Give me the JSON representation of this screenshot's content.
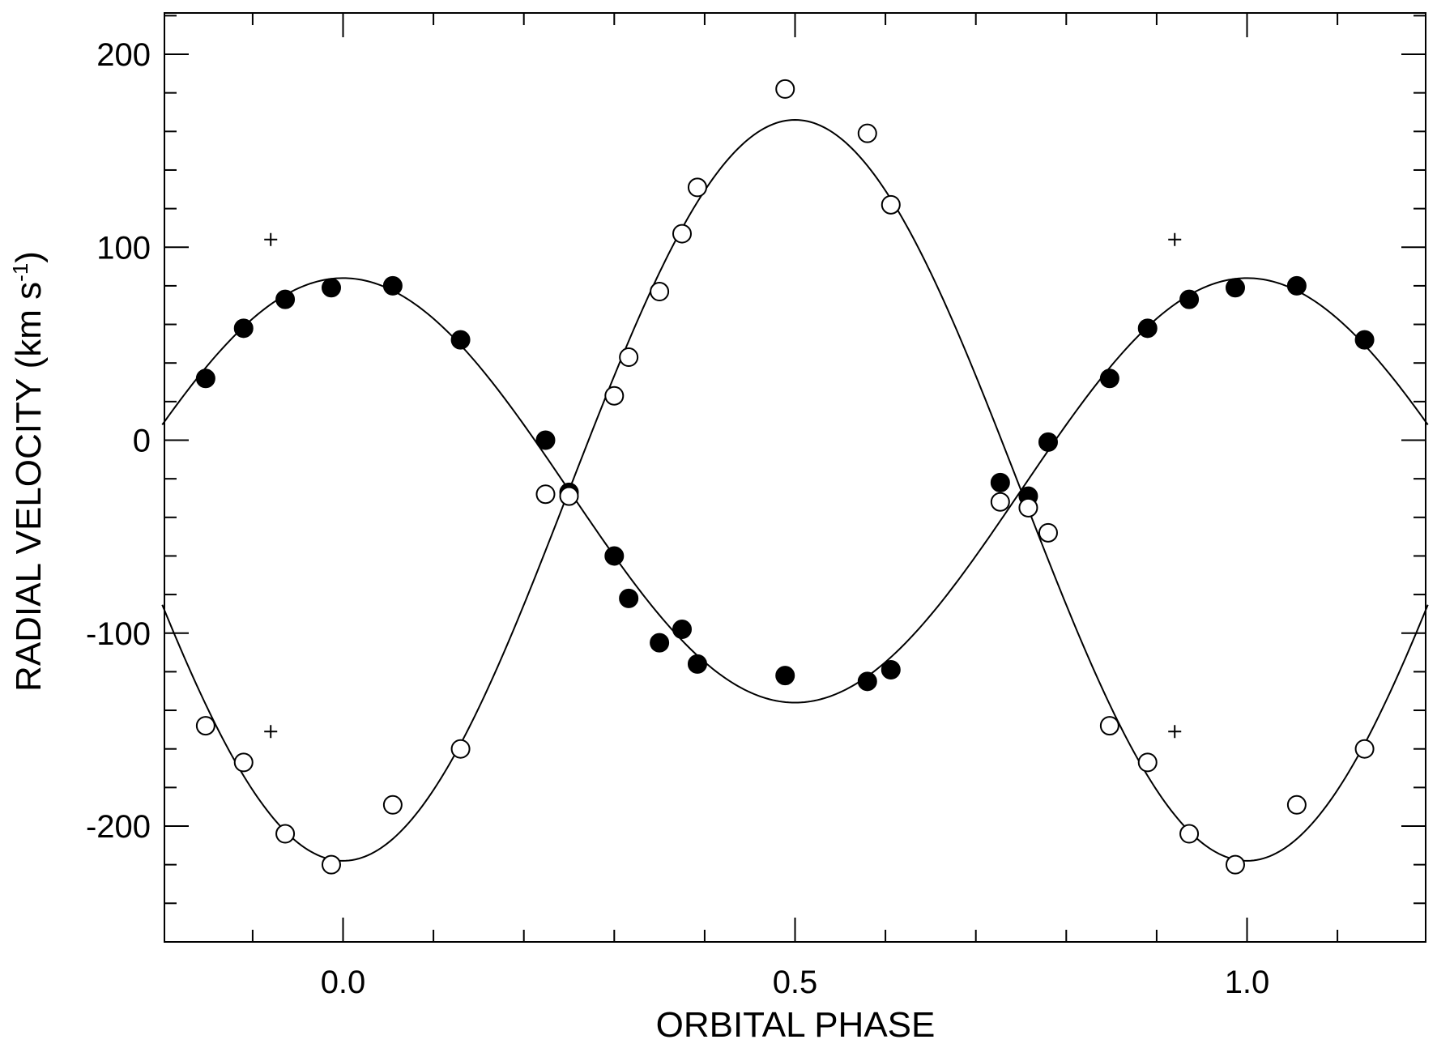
{
  "chart_data": {
    "type": "scatter",
    "title": "",
    "xlabel": "ORBITAL PHASE",
    "ylabel": "RADIAL VELOCITY (km s",
    "ylabel_sup": "-1",
    "ylabel_end": ")",
    "xlim": [
      -0.2,
      1.2
    ],
    "ylim": [
      -260,
      220
    ],
    "x_ticks": [
      {
        "value": 0.0,
        "label": "0.0"
      },
      {
        "value": 0.5,
        "label": "0.5"
      },
      {
        "value": 1.0,
        "label": "1.0"
      }
    ],
    "x_minor_step": 0.1,
    "y_ticks": [
      {
        "value": 200,
        "label": "200"
      },
      {
        "value": 100,
        "label": "100"
      },
      {
        "value": 0,
        "label": "0"
      },
      {
        "value": -100,
        "label": "-100"
      },
      {
        "value": -200,
        "label": "-200"
      }
    ],
    "y_minor_step": 20,
    "grid": false,
    "colors": {
      "ink": "#000000",
      "background": "#ffffff"
    },
    "series": [
      {
        "marker": "filled-circle",
        "x": [
          -0.152,
          -0.11,
          -0.064,
          -0.013,
          0.055,
          0.13,
          0.224,
          0.25,
          0.3,
          0.316,
          0.35,
          0.375,
          0.392,
          0.489,
          0.58,
          0.606,
          0.727,
          0.758,
          0.78,
          0.848,
          0.89,
          0.936,
          0.987,
          1.055,
          1.13
        ],
        "y": [
          32,
          58,
          73,
          79,
          80,
          52,
          0,
          -27,
          -60,
          -82,
          -105,
          -98,
          -116,
          -122,
          -125,
          -119,
          -22,
          -29,
          -1,
          32,
          58,
          73,
          79,
          80,
          52
        ]
      },
      {
        "marker": "open-circle",
        "x": [
          -0.152,
          -0.11,
          -0.064,
          -0.013,
          0.055,
          0.13,
          0.224,
          0.25,
          0.3,
          0.316,
          0.35,
          0.375,
          0.392,
          0.489,
          0.58,
          0.606,
          0.727,
          0.758,
          0.78,
          0.848,
          0.89,
          0.936,
          0.987,
          1.055,
          1.13
        ],
        "y": [
          -148,
          -167,
          -204,
          -220,
          -189,
          -160,
          -28,
          -29,
          23,
          43,
          77,
          107,
          131,
          182,
          159,
          122,
          -32,
          -35,
          -48,
          -148,
          -167,
          -204,
          -220,
          -189,
          -160
        ]
      },
      {
        "marker": "plus",
        "x": [
          -0.08,
          -0.08,
          0.92,
          0.92
        ],
        "y": [
          104,
          -151,
          104,
          -151
        ]
      }
    ],
    "fit_curves": [
      {
        "gamma": -26,
        "K": 110,
        "phase_of_max": 0.0
      },
      {
        "gamma": -26,
        "K": 192,
        "phase_of_max": 0.5
      }
    ]
  }
}
